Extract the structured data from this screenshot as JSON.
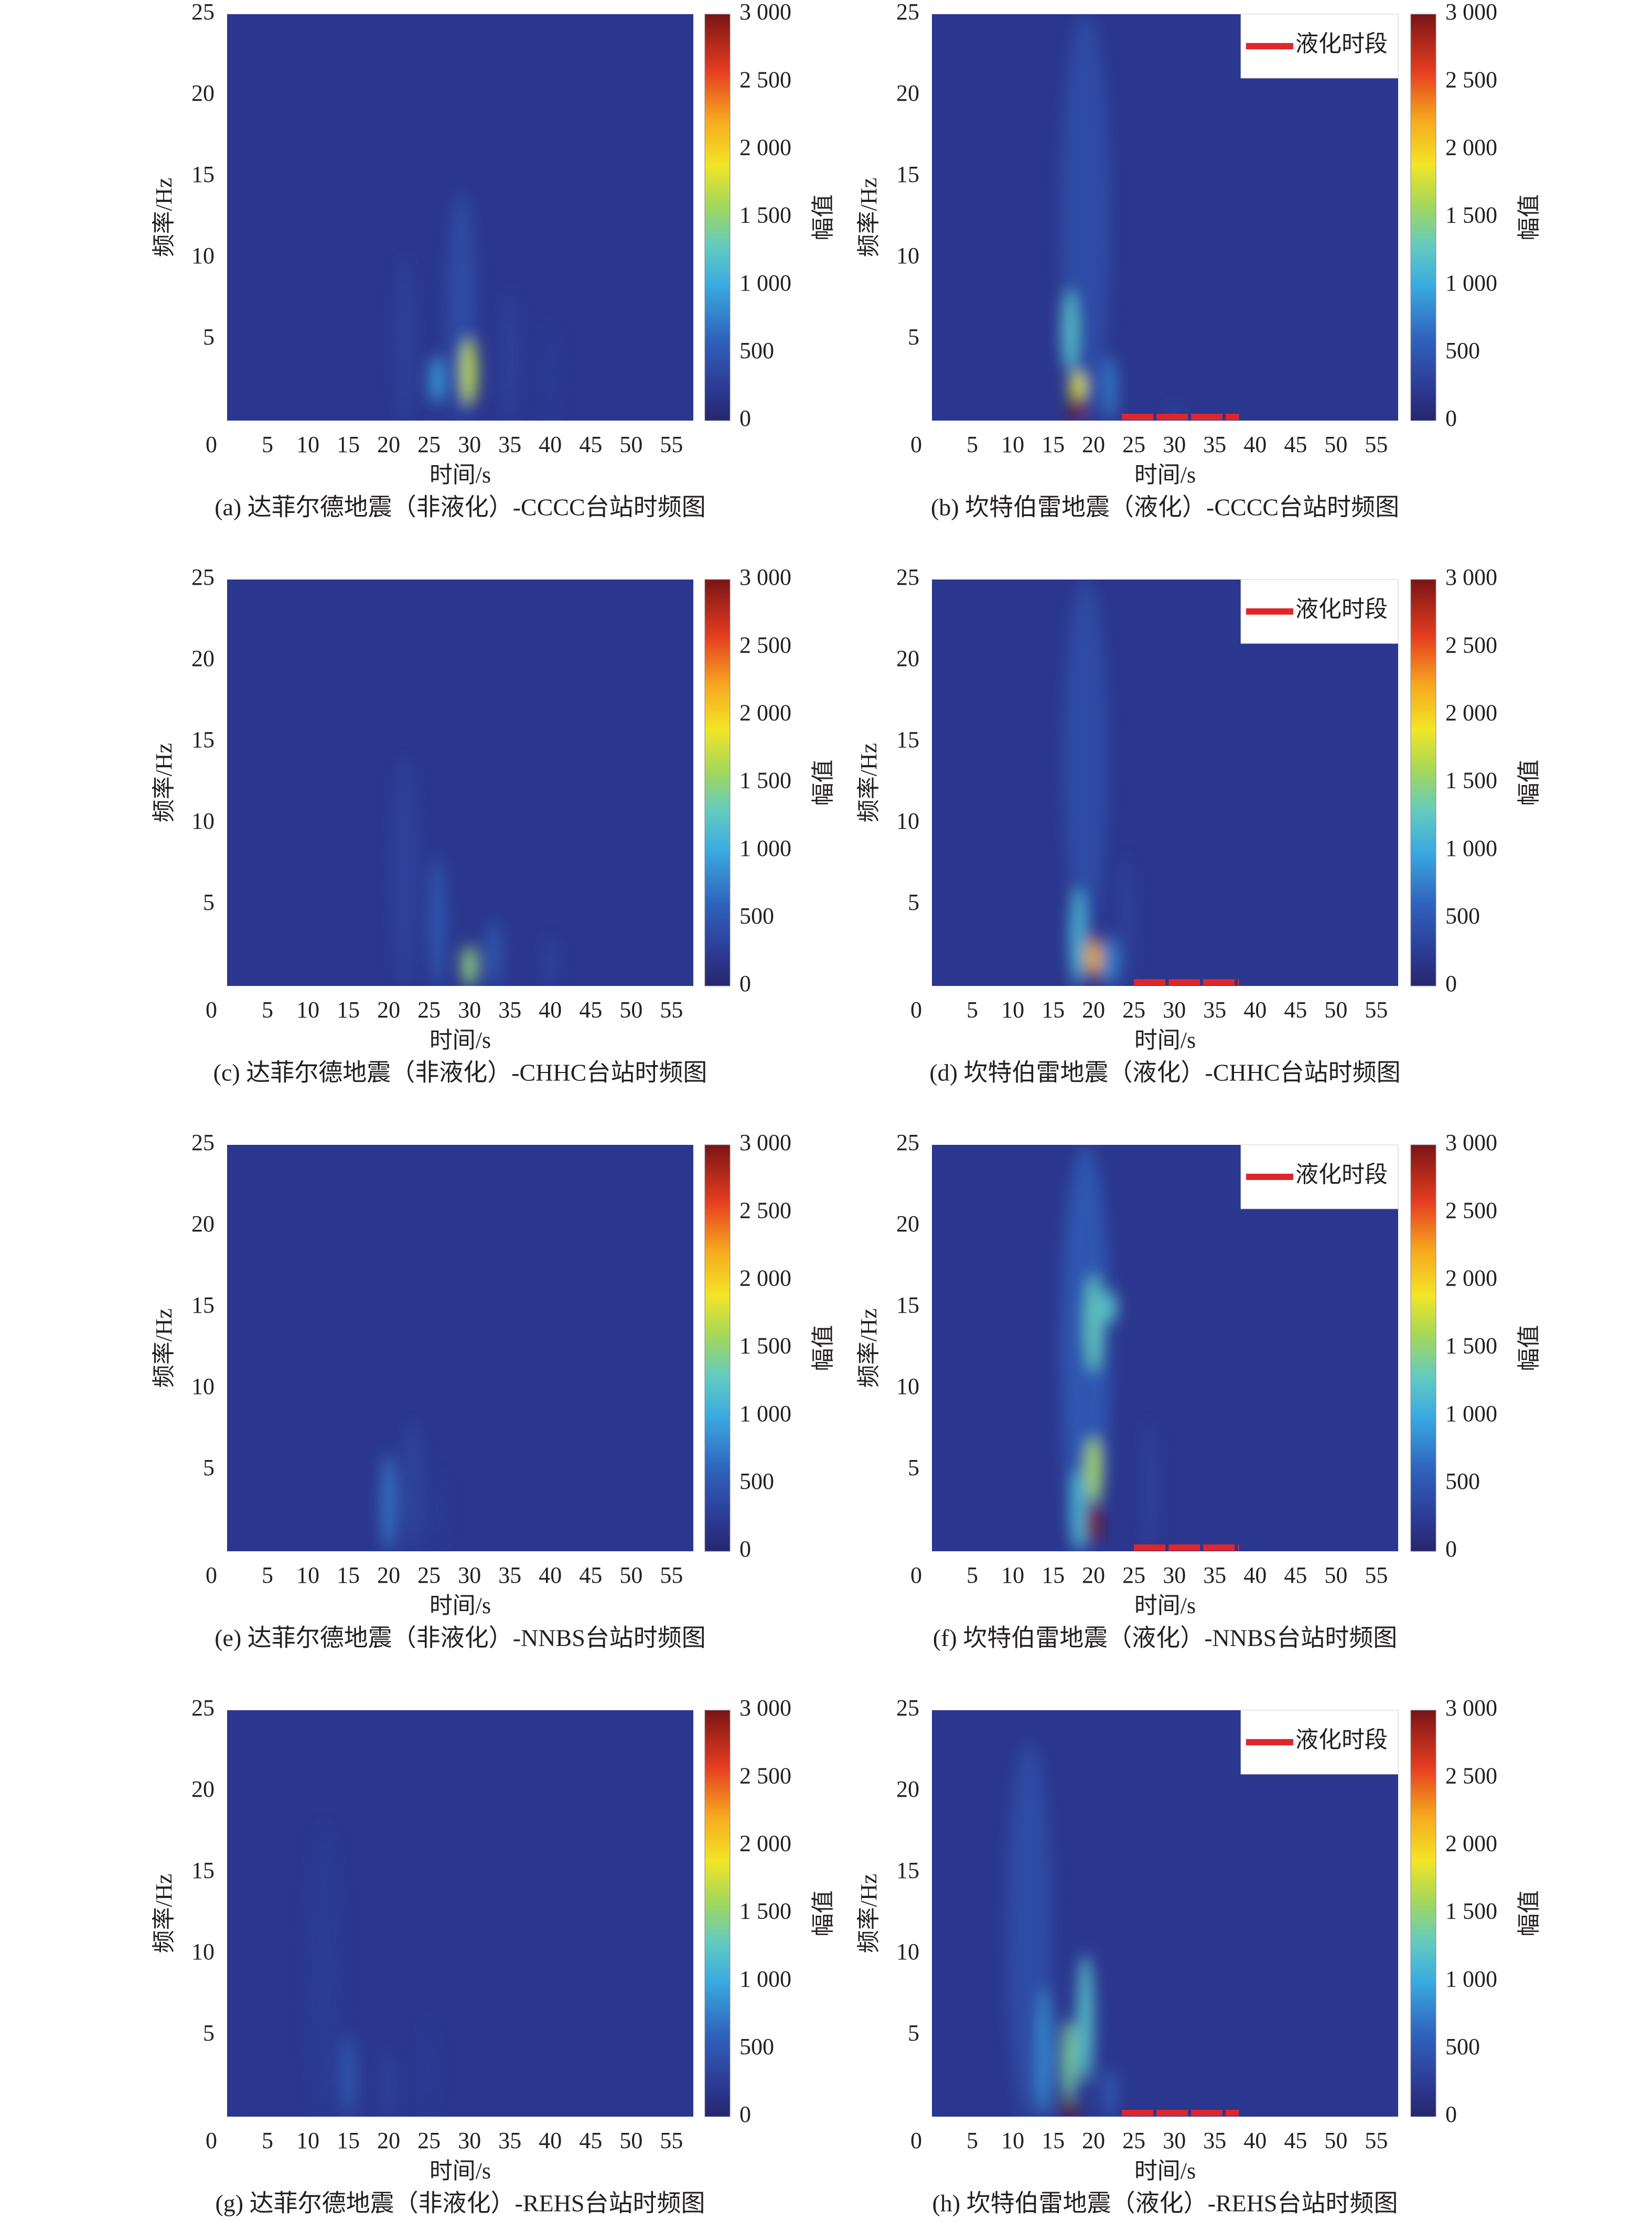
{
  "chart_data": [
    {
      "type": "heatmap",
      "title": "(a) 达菲尔德地震（非液化）-CCCC台站时频图",
      "x_label": "时间/s",
      "y_label": "频率/Hz",
      "colorbar_label": "幅值",
      "xlim": [
        0,
        57.7
      ],
      "xticks": [
        0,
        5,
        10,
        15,
        20,
        25,
        30,
        35,
        40,
        45,
        50,
        55
      ],
      "ylim": [
        0,
        25
      ],
      "yticks": [
        5,
        10,
        15,
        20,
        25
      ],
      "clim": [
        0,
        3000
      ],
      "cticks": [
        0,
        500,
        {
          "value": 1000,
          "label": "1 000"
        },
        {
          "value": 1500,
          "label": "1 500"
        },
        {
          "value": 2000,
          "label": "2 000"
        },
        {
          "value": 2500,
          "label": "2 500"
        },
        {
          "value": 3000,
          "label": "3 000"
        }
      ],
      "colormap": "jet",
      "background": 200,
      "hotspots": [
        {
          "t": 22,
          "f": [
            0,
            10
          ],
          "value": 300
        },
        {
          "t": 35,
          "f": [
            0,
            8
          ],
          "value": 300
        },
        {
          "t": 40,
          "f": [
            0,
            6
          ],
          "value": 250
        },
        {
          "t": 29,
          "f": [
            0,
            14
          ],
          "value": 400
        },
        {
          "t": 26,
          "f": [
            1,
            4
          ],
          "value": 900
        },
        {
          "t": 30,
          "f": [
            1,
            5
          ],
          "value": 1700
        }
      ]
    },
    {
      "type": "heatmap",
      "title": "(b) 坎特伯雷地震（液化）-CCCC台站时频图",
      "x_label": "时间/s",
      "y_label": "频率/Hz",
      "colorbar_label": "幅值",
      "xlim": [
        0,
        57.7
      ],
      "xticks": [
        0,
        5,
        10,
        15,
        20,
        25,
        30,
        35,
        40,
        45,
        50,
        55
      ],
      "ylim": [
        0,
        25
      ],
      "yticks": [
        5,
        10,
        15,
        20,
        25
      ],
      "clim": [
        0,
        3000
      ],
      "cticks": [
        0,
        500,
        {
          "value": 1000,
          "label": "1 000"
        },
        {
          "value": 1500,
          "label": "1 500"
        },
        {
          "value": 2000,
          "label": "2 000"
        },
        {
          "value": 2500,
          "label": "2 500"
        },
        {
          "value": 3000,
          "label": "3 000"
        }
      ],
      "colormap": "jet",
      "background": 200,
      "hotspots": [
        {
          "t": 19,
          "f": [
            0,
            25
          ],
          "value": 400
        },
        {
          "t": 30,
          "f": [
            0,
            1
          ],
          "value": 300
        },
        {
          "t": 22,
          "f": [
            0,
            4
          ],
          "value": 700
        },
        {
          "t": 17,
          "f": [
            3,
            8
          ],
          "value": 1200
        },
        {
          "t": 18,
          "f": [
            1,
            3
          ],
          "value": 1800
        },
        {
          "t": 18,
          "f": [
            0,
            1.5
          ],
          "value": 3000
        }
      ],
      "segment": {
        "name": "液化时段",
        "x": [
          23.5,
          38
        ],
        "color": "#e0262b"
      }
    },
    {
      "type": "heatmap",
      "title": "(c) 达菲尔德地震（非液化）-CHHC台站时频图",
      "x_label": "时间/s",
      "y_label": "频率/Hz",
      "colorbar_label": "幅值",
      "xlim": [
        0,
        57.7
      ],
      "xticks": [
        0,
        5,
        10,
        15,
        20,
        25,
        30,
        35,
        40,
        45,
        50,
        55
      ],
      "ylim": [
        0,
        25
      ],
      "yticks": [
        5,
        10,
        15,
        20,
        25
      ],
      "clim": [
        0,
        3000
      ],
      "cticks": [
        0,
        500,
        {
          "value": 1000,
          "label": "1 000"
        },
        {
          "value": 1500,
          "label": "1 500"
        },
        {
          "value": 2000,
          "label": "2 000"
        },
        {
          "value": 2500,
          "label": "2 500"
        },
        {
          "value": 3000,
          "label": "3 000"
        }
      ],
      "colormap": "jet",
      "background": 200,
      "hotspots": [
        {
          "t": 22,
          "f": [
            0,
            14
          ],
          "value": 300
        },
        {
          "t": 40,
          "f": [
            0,
            3
          ],
          "value": 300
        },
        {
          "t": 26,
          "f": [
            0,
            8
          ],
          "value": 500
        },
        {
          "t": 33,
          "f": [
            0,
            4
          ],
          "value": 500
        },
        {
          "t": 30,
          "f": [
            0,
            2.5
          ],
          "value": 1500
        }
      ]
    },
    {
      "type": "heatmap",
      "title": "(d) 坎特伯雷地震（液化）-CHHC台站时频图",
      "x_label": "时间/s",
      "y_label": "频率/Hz",
      "colorbar_label": "幅值",
      "xlim": [
        0,
        57.7
      ],
      "xticks": [
        0,
        5,
        10,
        15,
        20,
        25,
        30,
        35,
        40,
        45,
        50,
        55
      ],
      "ylim": [
        0,
        25
      ],
      "yticks": [
        5,
        10,
        15,
        20,
        25
      ],
      "clim": [
        0,
        3000
      ],
      "cticks": [
        0,
        500,
        {
          "value": 1000,
          "label": "1 000"
        },
        {
          "value": 1500,
          "label": "1 500"
        },
        {
          "value": 2000,
          "label": "2 000"
        },
        {
          "value": 2500,
          "label": "2 500"
        },
        {
          "value": 3000,
          "label": "3 000"
        }
      ],
      "colormap": "jet",
      "background": 200,
      "hotspots": [
        {
          "t": 24,
          "f": [
            0,
            8
          ],
          "value": 300
        },
        {
          "t": 19,
          "f": [
            3,
            25
          ],
          "value": 400
        },
        {
          "t": 22,
          "f": [
            0,
            3
          ],
          "value": 800
        },
        {
          "t": 18,
          "f": [
            0,
            6
          ],
          "value": 1100
        },
        {
          "t": 20,
          "f": [
            0.5,
            3
          ],
          "value": 2200
        }
      ],
      "segment": {
        "name": "液化时段",
        "x": [
          25,
          38
        ],
        "color": "#e0262b"
      }
    },
    {
      "type": "heatmap",
      "title": "(e) 达菲尔德地震（非液化）-NNBS台站时频图",
      "x_label": "时间/s",
      "y_label": "频率/Hz",
      "colorbar_label": "幅值",
      "xlim": [
        0,
        57.7
      ],
      "xticks": [
        0,
        5,
        10,
        15,
        20,
        25,
        30,
        35,
        40,
        45,
        50,
        55
      ],
      "ylim": [
        0,
        25
      ],
      "yticks": [
        5,
        10,
        15,
        20,
        25
      ],
      "clim": [
        0,
        3000
      ],
      "cticks": [
        0,
        500,
        {
          "value": 1000,
          "label": "1 000"
        },
        {
          "value": 1500,
          "label": "1 500"
        },
        {
          "value": 2000,
          "label": "2 000"
        },
        {
          "value": 2500,
          "label": "2 500"
        },
        {
          "value": 3000,
          "label": "3 000"
        }
      ],
      "colormap": "jet",
      "background": 200,
      "hotspots": [
        {
          "t": 26,
          "f": [
            0,
            5
          ],
          "value": 250
        },
        {
          "t": 23,
          "f": [
            0,
            8
          ],
          "value": 350
        },
        {
          "t": 20,
          "f": [
            0,
            6
          ],
          "value": 700
        }
      ]
    },
    {
      "type": "heatmap",
      "title": "(f) 坎特伯雷地震（液化）-NNBS台站时频图",
      "x_label": "时间/s",
      "y_label": "频率/Hz",
      "colorbar_label": "幅值",
      "xlim": [
        0,
        57.7
      ],
      "xticks": [
        0,
        5,
        10,
        15,
        20,
        25,
        30,
        35,
        40,
        45,
        50,
        55
      ],
      "ylim": [
        0,
        25
      ],
      "yticks": [
        5,
        10,
        15,
        20,
        25
      ],
      "clim": [
        0,
        3000
      ],
      "cticks": [
        0,
        500,
        {
          "value": 1000,
          "label": "1 000"
        },
        {
          "value": 1500,
          "label": "1 500"
        },
        {
          "value": 2000,
          "label": "2 000"
        },
        {
          "value": 2500,
          "label": "2 500"
        },
        {
          "value": 3000,
          "label": "3 000"
        }
      ],
      "colormap": "jet",
      "background": 200,
      "hotspots": [
        {
          "t": 27,
          "f": [
            0,
            8
          ],
          "value": 300
        },
        {
          "t": 19,
          "f": [
            0,
            25
          ],
          "value": 500
        },
        {
          "t": 18,
          "f": [
            0,
            5
          ],
          "value": 1100
        },
        {
          "t": 22,
          "f": [
            14,
            16
          ],
          "value": 1200
        },
        {
          "t": 20,
          "f": [
            11,
            17
          ],
          "value": 1300
        },
        {
          "t": 20,
          "f": [
            3,
            7
          ],
          "value": 1600
        },
        {
          "t": 20,
          "f": [
            0.5,
            3
          ],
          "value": 3000
        }
      ],
      "segment": {
        "name": "液化时段",
        "x": [
          25,
          38
        ],
        "color": "#e0262b"
      }
    },
    {
      "type": "heatmap",
      "title": "(g) 达菲尔德地震（非液化）-REHS台站时频图",
      "x_label": "时间/s",
      "y_label": "频率/Hz",
      "colorbar_label": "幅值",
      "xlim": [
        0,
        57.7
      ],
      "xticks": [
        0,
        5,
        10,
        15,
        20,
        25,
        30,
        35,
        40,
        45,
        50,
        55
      ],
      "ylim": [
        0,
        25
      ],
      "yticks": [
        5,
        10,
        15,
        20,
        25
      ],
      "clim": [
        0,
        3000
      ],
      "cticks": [
        0,
        500,
        {
          "value": 1000,
          "label": "1 000"
        },
        {
          "value": 1500,
          "label": "1 500"
        },
        {
          "value": 2000,
          "label": "2 000"
        },
        {
          "value": 2500,
          "label": "2 500"
        },
        {
          "value": 3000,
          "label": "3 000"
        }
      ],
      "colormap": "jet",
      "background": 200,
      "hotspots": [
        {
          "t": 12,
          "f": [
            0,
            18
          ],
          "value": 250
        },
        {
          "t": 25,
          "f": [
            0,
            6
          ],
          "value": 250
        },
        {
          "t": 20,
          "f": [
            0,
            4
          ],
          "value": 300
        },
        {
          "t": 15,
          "f": [
            0,
            5
          ],
          "value": 500
        }
      ]
    },
    {
      "type": "heatmap",
      "title": "(h) 坎特伯雷地震（液化）-REHS台站时频图",
      "x_label": "时间/s",
      "y_label": "频率/Hz",
      "colorbar_label": "幅值",
      "xlim": [
        0,
        57.7
      ],
      "xticks": [
        0,
        5,
        10,
        15,
        20,
        25,
        30,
        35,
        40,
        45,
        50,
        55
      ],
      "ylim": [
        0,
        25
      ],
      "yticks": [
        5,
        10,
        15,
        20,
        25
      ],
      "clim": [
        0,
        3000
      ],
      "cticks": [
        0,
        500,
        {
          "value": 1000,
          "label": "1 000"
        },
        {
          "value": 1500,
          "label": "1 500"
        },
        {
          "value": 2000,
          "label": "2 000"
        },
        {
          "value": 2500,
          "label": "2 500"
        },
        {
          "value": 3000,
          "label": "3 000"
        }
      ],
      "colormap": "jet",
      "background": 200,
      "hotspots": [
        {
          "t": 12,
          "f": [
            0,
            23
          ],
          "value": 400
        },
        {
          "t": 22,
          "f": [
            0,
            3
          ],
          "value": 500
        },
        {
          "t": 14,
          "f": [
            0,
            8
          ],
          "value": 800
        },
        {
          "t": 19,
          "f": [
            2,
            10
          ],
          "value": 1200
        },
        {
          "t": 17,
          "f": [
            1,
            6
          ],
          "value": 1400
        },
        {
          "t": 17,
          "f": [
            0,
            1
          ],
          "value": 3000
        }
      ],
      "segment": {
        "name": "液化时段",
        "x": [
          23.5,
          38
        ],
        "color": "#e0262b"
      }
    }
  ]
}
